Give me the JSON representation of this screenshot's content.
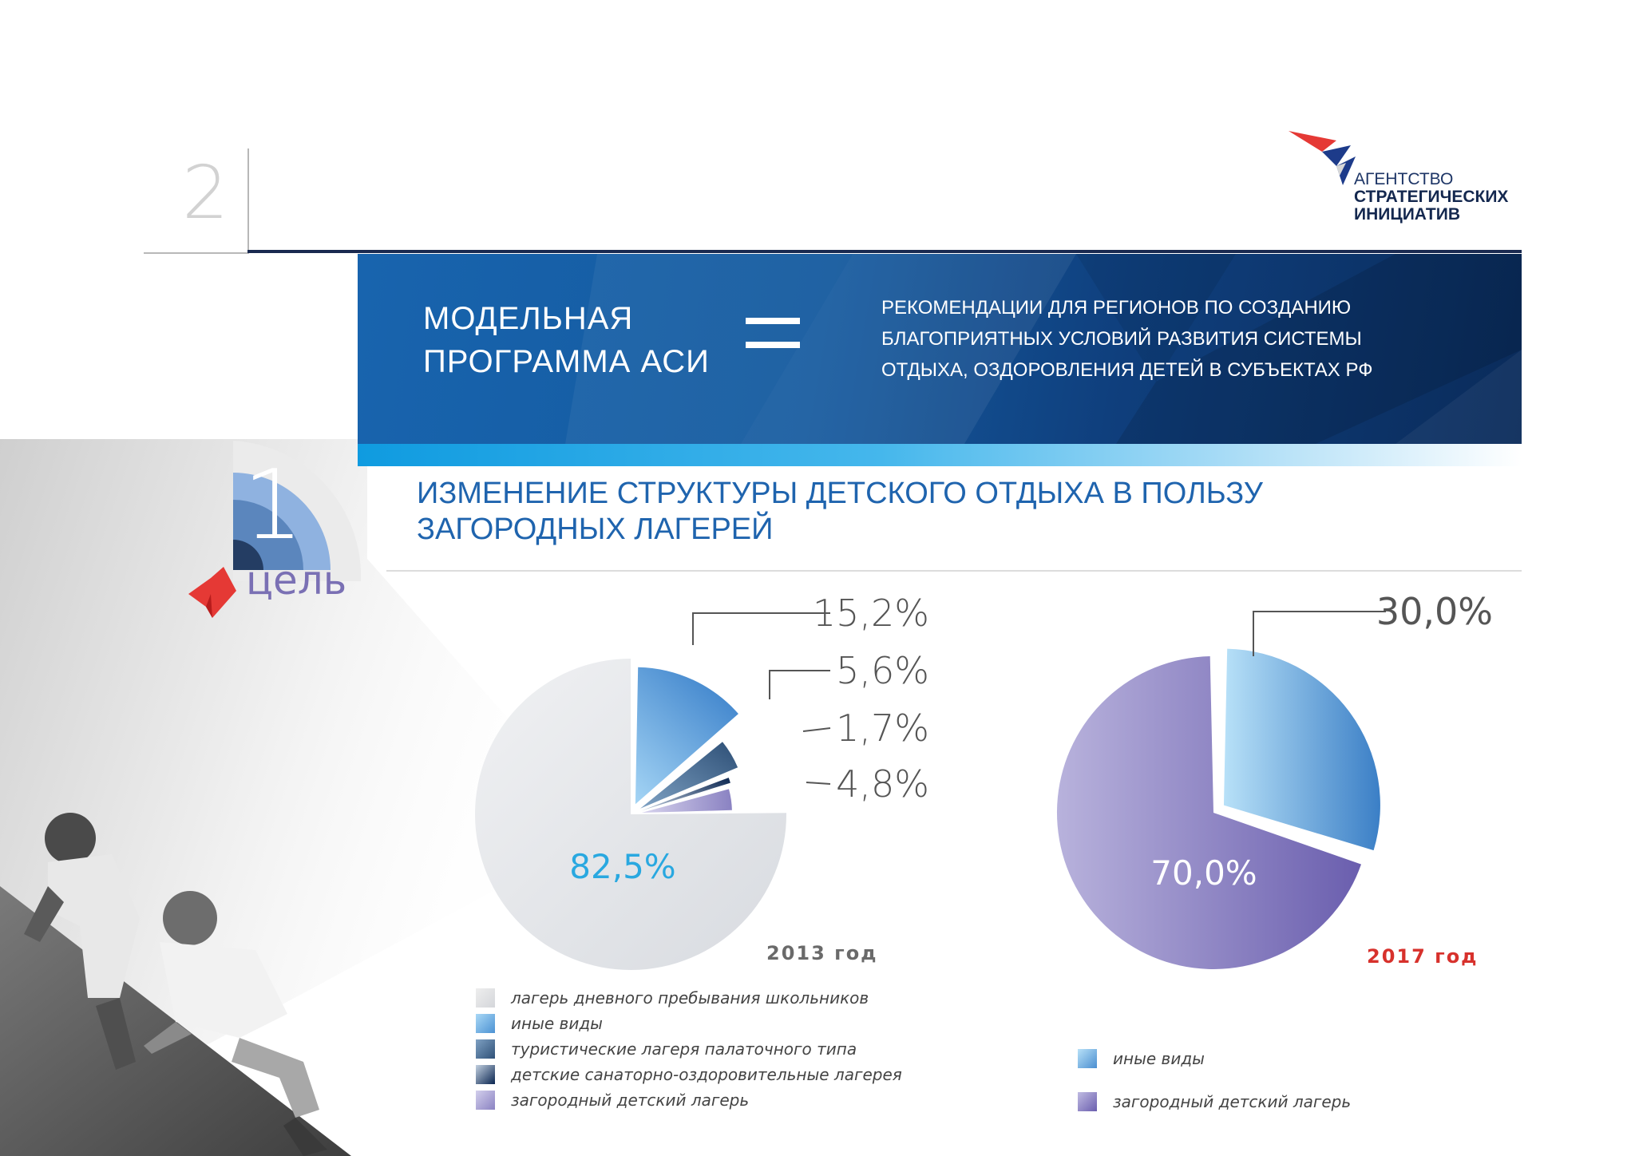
{
  "page": {
    "number": "2"
  },
  "logo": {
    "line1": "АГЕНТСТВО",
    "line2": "СТРАТЕГИЧЕСКИХ",
    "line3": "ИНИЦИАТИВ",
    "colors": {
      "red": "#e53935",
      "blue": "#1d3b8a",
      "white": "#ffffff"
    }
  },
  "banner": {
    "title": [
      "МОДЕЛЬНАЯ",
      "ПРОГРАММА АСИ"
    ],
    "equals": "=",
    "description": [
      "РЕКОМЕНДАЦИИ ДЛЯ РЕГИОНОВ ПО СОЗДАНИЮ",
      "БЛАГОПРИЯТНЫХ УСЛОВИЙ РАЗВИТИЯ СИСТЕМЫ",
      "ОТДЫХА, ОЗДОРОВЛЕНИЯ ДЕТЕЙ В СУБЪЕКТАХ РФ"
    ]
  },
  "goal": {
    "number": "1",
    "word": "цель"
  },
  "section": {
    "title": [
      "ИЗМЕНЕНИЕ СТРУКТУРЫ ДЕТСКОГО ОТДЫХА В ПОЛЬЗУ",
      "ЗАГОРОДНЫХ ЛАГЕРЕЙ"
    ]
  },
  "chart_data": [
    {
      "type": "pie",
      "year_label": "2013 год",
      "categories": [
        "лагерь дневного пребывания школьников",
        "иные виды",
        "туристические лагеря палаточного типа",
        "детские санаторно-оздоровительные лагерея",
        "загородный детский лагерь"
      ],
      "values": [
        82.5,
        15.2,
        5.6,
        1.7,
        4.8
      ],
      "value_labels": [
        "82,5%",
        "15,2%",
        "5,6%",
        "1,7%",
        "4,8%"
      ],
      "colors": [
        "#e4e6ea",
        "#5b9fd9",
        "#3c6690",
        "#0e2b55",
        "#9c96cf"
      ],
      "legend": "bottom"
    },
    {
      "type": "pie",
      "year_label": "2017 год",
      "categories": [
        "иные виды",
        "загородный детский лагерь"
      ],
      "values": [
        30.0,
        70.0
      ],
      "value_labels": [
        "30,0%",
        "70,0%"
      ],
      "colors": [
        "#7fc0ec",
        "#8f86c6"
      ],
      "legend": "bottom"
    }
  ]
}
